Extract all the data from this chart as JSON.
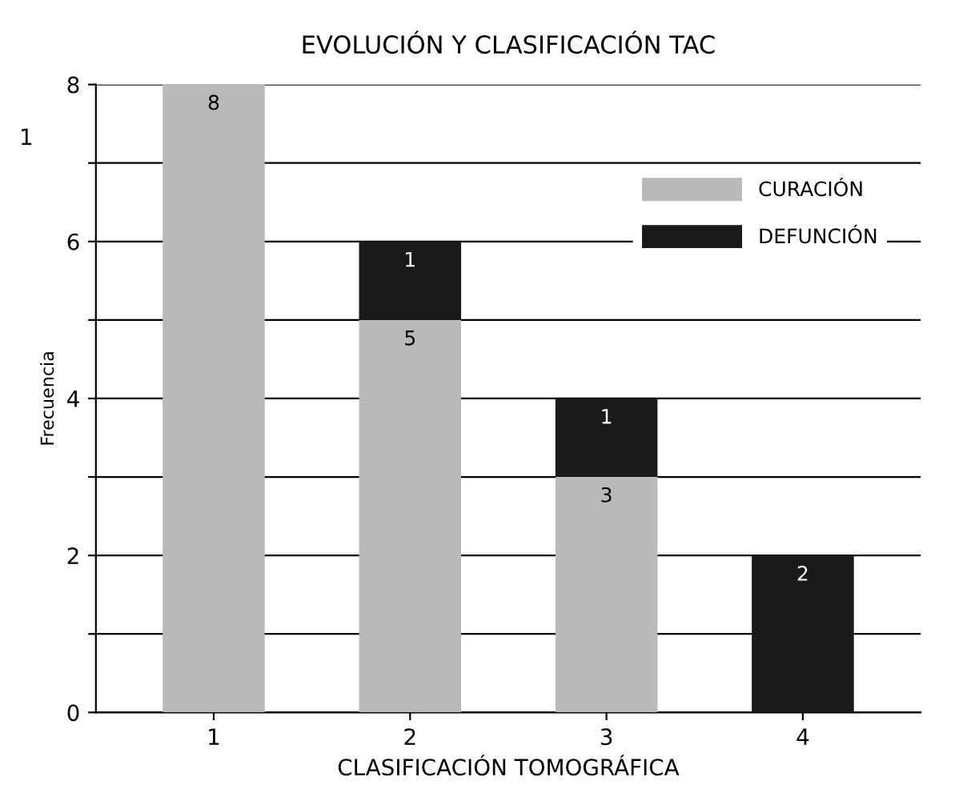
{
  "chart_data": {
    "type": "bar",
    "title": "EVOLUCIÓN Y CLASIFICACIÓN TAC",
    "xlabel": "CLASIFICACIÓN TOMOGRÁFICA",
    "ylabel": "Frecuencia",
    "categories": [
      "1",
      "2",
      "3",
      "4"
    ],
    "stacked": true,
    "series": [
      {
        "name": "CURACIÓN",
        "color": "#b9b9b9",
        "values": [
          8,
          5,
          3,
          0
        ],
        "value_labels": [
          "8",
          "5",
          "3",
          null
        ]
      },
      {
        "name": "DEFUNCIÓN",
        "color": "#1a1a1a",
        "values": [
          0,
          1,
          1,
          2
        ],
        "value_labels": [
          null,
          "1",
          "1",
          "2"
        ]
      }
    ],
    "ylim": [
      0,
      8
    ],
    "yticks": [
      0,
      {
        "value": 1,
        "label": null
      },
      2,
      {
        "value": 3,
        "label": null
      },
      4,
      {
        "value": 5,
        "label": null
      },
      6,
      {
        "value": 7,
        "label": null
      },
      8
    ],
    "grid": "y",
    "legend": "top right",
    "annotations": [
      "1"
    ]
  }
}
